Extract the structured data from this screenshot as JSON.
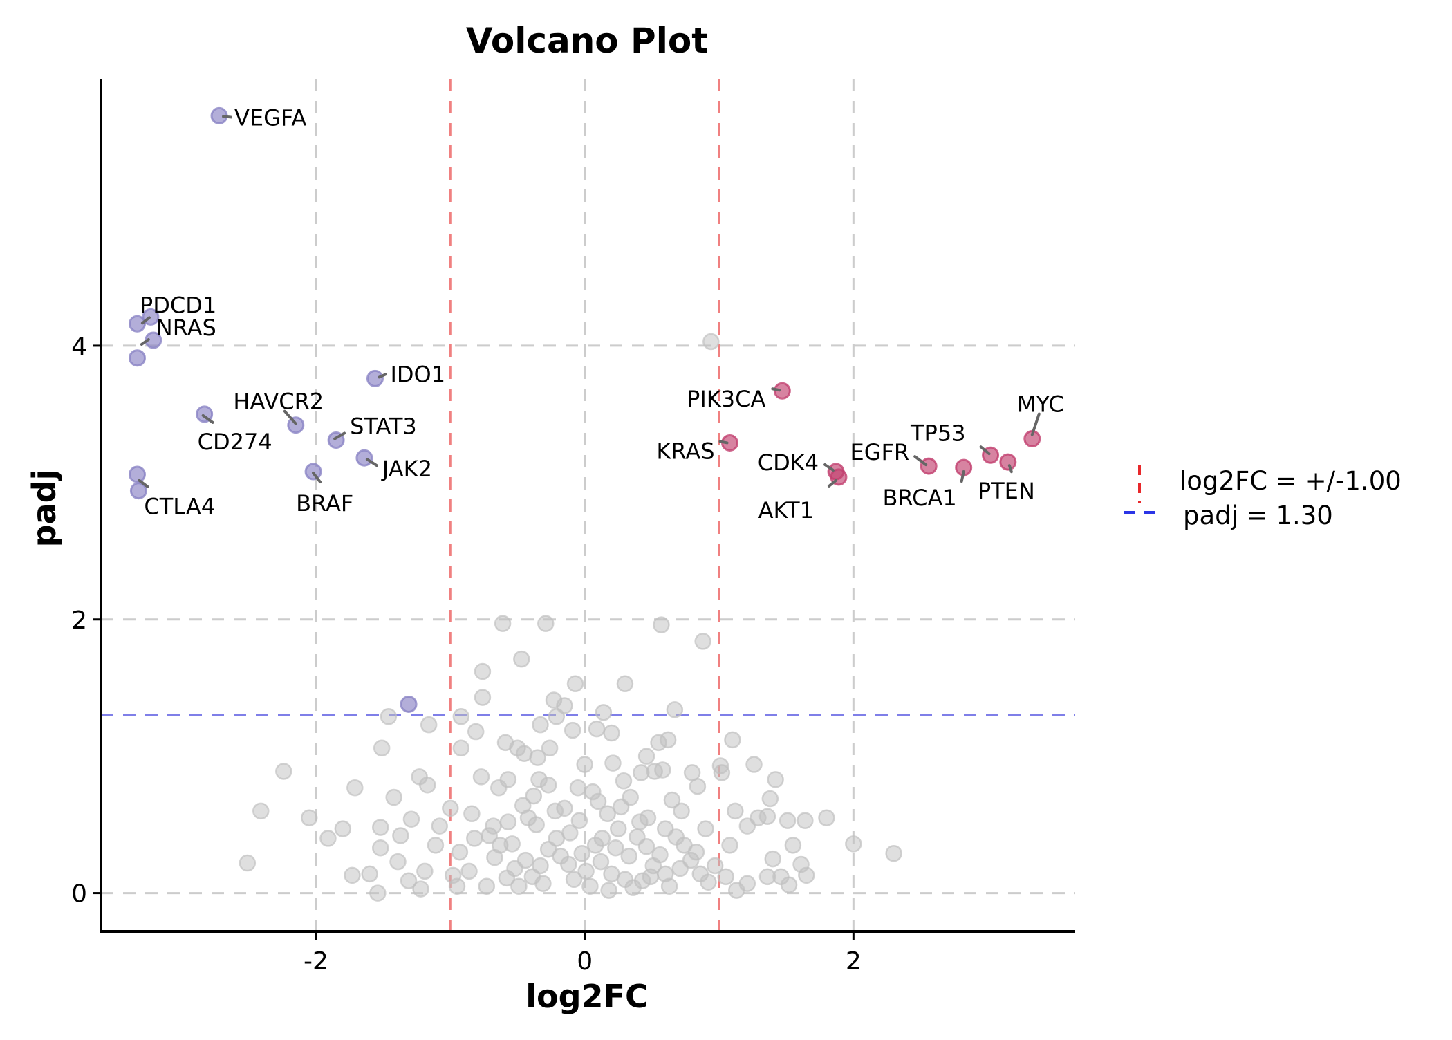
{
  "chart_data": {
    "type": "scatter",
    "title": "Volcano Plot",
    "xlabel": "log2FC",
    "ylabel": "padj",
    "xlim": [
      -3.6,
      3.65
    ],
    "ylim": [
      -0.28,
      5.95
    ],
    "xticks": [
      -2,
      0,
      2
    ],
    "yticks": [
      0,
      2,
      4
    ],
    "xtick_labels": [
      "-2",
      "0",
      "2"
    ],
    "ytick_labels": [
      "0",
      "2",
      "4"
    ],
    "grid": true,
    "thresholds": {
      "log2fc": 1.0,
      "padj": 1.3
    },
    "legend": {
      "placement": "right",
      "entries": [
        {
          "label": "log2FC = +/-1.00",
          "color": "#e8282b",
          "style": "dashed-vertical"
        },
        {
          "label": "padj = 1.30",
          "color": "#2b35e6",
          "style": "dashed-horizontal"
        }
      ]
    },
    "colors": {
      "down": "#8a83c4",
      "up": "#c2406f",
      "ns": "#c0c0c0",
      "log2fc_line": "#f08080",
      "padj_line": "#7f7fe8",
      "grid": "#cccccc"
    },
    "labeled_points": [
      {
        "gene": "VEGFA",
        "x": -2.72,
        "y": 5.68,
        "group": "down"
      },
      {
        "gene": "PDCD1",
        "x": -3.23,
        "y": 4.21,
        "group": "down"
      },
      {
        "gene": "",
        "x": -3.33,
        "y": 4.16,
        "group": "down"
      },
      {
        "gene": "NRAS",
        "x": -3.21,
        "y": 4.04,
        "group": "down"
      },
      {
        "gene": "",
        "x": -3.33,
        "y": 3.91,
        "group": "down"
      },
      {
        "gene": "IDO1",
        "x": -1.56,
        "y": 3.76,
        "group": "down"
      },
      {
        "gene": "HAVCR2",
        "x": -2.15,
        "y": 3.42,
        "group": "down"
      },
      {
        "gene": "CD274",
        "x": -2.83,
        "y": 3.5,
        "group": "down"
      },
      {
        "gene": "STAT3",
        "x": -1.85,
        "y": 3.31,
        "group": "down"
      },
      {
        "gene": "JAK2",
        "x": -1.64,
        "y": 3.18,
        "group": "down"
      },
      {
        "gene": "BRAF",
        "x": -2.02,
        "y": 3.08,
        "group": "down"
      },
      {
        "gene": "",
        "x": -3.33,
        "y": 3.06,
        "group": "down"
      },
      {
        "gene": "CTLA4",
        "x": -3.32,
        "y": 2.94,
        "group": "down"
      },
      {
        "gene": "",
        "x": -1.31,
        "y": 1.38,
        "group": "down"
      },
      {
        "gene": "PIK3CA",
        "x": 1.47,
        "y": 3.67,
        "group": "up"
      },
      {
        "gene": "KRAS",
        "x": 1.08,
        "y": 3.29,
        "group": "up"
      },
      {
        "gene": "CDK4",
        "x": 1.87,
        "y": 3.08,
        "group": "up"
      },
      {
        "gene": "AKT1",
        "x": 1.89,
        "y": 3.04,
        "group": "up"
      },
      {
        "gene": "EGFR",
        "x": 2.56,
        "y": 3.12,
        "group": "up"
      },
      {
        "gene": "BRCA1",
        "x": 2.82,
        "y": 3.11,
        "group": "up"
      },
      {
        "gene": "TP53",
        "x": 3.02,
        "y": 3.2,
        "group": "up"
      },
      {
        "gene": "PTEN",
        "x": 3.15,
        "y": 3.15,
        "group": "up"
      },
      {
        "gene": "MYC",
        "x": 3.33,
        "y": 3.32,
        "group": "up"
      }
    ],
    "ns_points": [
      [
        0.94,
        4.03
      ],
      [
        -0.61,
        1.97
      ],
      [
        -0.29,
        1.97
      ],
      [
        0.57,
        1.96
      ],
      [
        0.88,
        1.84
      ],
      [
        -0.47,
        1.71
      ],
      [
        -0.76,
        1.62
      ],
      [
        -0.07,
        1.53
      ],
      [
        0.3,
        1.53
      ],
      [
        -0.76,
        1.43
      ],
      [
        -0.23,
        1.41
      ],
      [
        -0.15,
        1.37
      ],
      [
        0.14,
        1.32
      ],
      [
        0.67,
        1.34
      ],
      [
        -1.46,
        1.29
      ],
      [
        -0.92,
        1.29
      ],
      [
        -0.33,
        1.23
      ],
      [
        -0.21,
        1.29
      ],
      [
        0.09,
        1.2
      ],
      [
        -1.16,
        1.23
      ],
      [
        -0.81,
        1.18
      ],
      [
        -0.59,
        1.1
      ],
      [
        -0.26,
        1.06
      ],
      [
        -0.09,
        1.19
      ],
      [
        0.2,
        1.17
      ],
      [
        0.55,
        1.1
      ],
      [
        0.62,
        1.12
      ],
      [
        1.1,
        1.12
      ],
      [
        -1.51,
        1.06
      ],
      [
        -0.92,
        1.06
      ],
      [
        -0.5,
        1.06
      ],
      [
        -0.45,
        1.02
      ],
      [
        -0.35,
        0.99
      ],
      [
        0.46,
        1.0
      ],
      [
        -2.24,
        0.89
      ],
      [
        -0.77,
        0.85
      ],
      [
        -0.34,
        0.83
      ],
      [
        0.0,
        0.94
      ],
      [
        0.21,
        0.95
      ],
      [
        0.42,
        0.88
      ],
      [
        0.52,
        0.89
      ],
      [
        1.01,
        0.93
      ],
      [
        1.26,
        0.94
      ],
      [
        -1.23,
        0.85
      ],
      [
        -1.17,
        0.79
      ],
      [
        -0.57,
        0.83
      ],
      [
        -0.27,
        0.79
      ],
      [
        -0.05,
        0.77
      ],
      [
        0.29,
        0.82
      ],
      [
        0.58,
        0.9
      ],
      [
        0.8,
        0.88
      ],
      [
        1.42,
        0.83
      ],
      [
        -1.71,
        0.77
      ],
      [
        -1.42,
        0.7
      ],
      [
        -0.64,
        0.77
      ],
      [
        -0.38,
        0.71
      ],
      [
        0.1,
        0.67
      ],
      [
        0.34,
        0.7
      ],
      [
        0.65,
        0.68
      ],
      [
        0.84,
        0.78
      ],
      [
        1.02,
        0.88
      ],
      [
        1.38,
        0.69
      ],
      [
        -2.41,
        0.6
      ],
      [
        -2.05,
        0.55
      ],
      [
        -1.8,
        0.47
      ],
      [
        -1.29,
        0.54
      ],
      [
        -0.84,
        0.58
      ],
      [
        -0.46,
        0.64
      ],
      [
        -0.22,
        0.6
      ],
      [
        0.17,
        0.58
      ],
      [
        0.47,
        0.55
      ],
      [
        0.72,
        0.6
      ],
      [
        1.12,
        0.6
      ],
      [
        1.29,
        0.55
      ],
      [
        1.51,
        0.53
      ],
      [
        1.64,
        0.53
      ],
      [
        1.8,
        0.55
      ],
      [
        -1.91,
        0.4
      ],
      [
        -1.52,
        0.48
      ],
      [
        -1.08,
        0.49
      ],
      [
        -0.68,
        0.49
      ],
      [
        -0.36,
        0.5
      ],
      [
        -0.04,
        0.53
      ],
      [
        0.25,
        0.47
      ],
      [
        0.6,
        0.47
      ],
      [
        0.9,
        0.47
      ],
      [
        1.21,
        0.49
      ],
      [
        1.36,
        0.56
      ],
      [
        1.55,
        0.35
      ],
      [
        -2.51,
        0.22
      ],
      [
        -1.52,
        0.33
      ],
      [
        -1.39,
        0.23
      ],
      [
        -1.11,
        0.35
      ],
      [
        -0.82,
        0.4
      ],
      [
        -0.54,
        0.36
      ],
      [
        -0.21,
        0.4
      ],
      [
        0.08,
        0.35
      ],
      [
        0.39,
        0.41
      ],
      [
        0.74,
        0.35
      ],
      [
        1.08,
        0.35
      ],
      [
        1.4,
        0.25
      ],
      [
        1.61,
        0.21
      ],
      [
        2.0,
        0.36
      ],
      [
        2.3,
        0.29
      ],
      [
        -1.73,
        0.13
      ],
      [
        -1.6,
        0.14
      ],
      [
        -1.54,
        0.0
      ],
      [
        -1.31,
        0.09
      ],
      [
        -1.19,
        0.16
      ],
      [
        -0.98,
        0.13
      ],
      [
        -0.73,
        0.05
      ],
      [
        -0.52,
        0.18
      ],
      [
        -0.31,
        0.07
      ],
      [
        -0.12,
        0.21
      ],
      [
        0.04,
        0.05
      ],
      [
        0.2,
        0.14
      ],
      [
        0.43,
        0.09
      ],
      [
        0.63,
        0.05
      ],
      [
        0.86,
        0.14
      ],
      [
        1.05,
        0.12
      ],
      [
        1.21,
        0.07
      ],
      [
        1.36,
        0.12
      ],
      [
        1.52,
        0.06
      ],
      [
        1.65,
        0.13
      ],
      [
        -0.93,
        0.3
      ],
      [
        -0.67,
        0.26
      ],
      [
        -0.44,
        0.24
      ],
      [
        -0.18,
        0.27
      ],
      [
        0.12,
        0.23
      ],
      [
        0.33,
        0.27
      ],
      [
        0.56,
        0.28
      ],
      [
        0.79,
        0.24
      ],
      [
        0.97,
        0.2
      ],
      [
        -1.0,
        0.62
      ],
      [
        -0.57,
        0.52
      ],
      [
        -0.11,
        0.44
      ],
      [
        0.23,
        0.33
      ],
      [
        0.51,
        0.2
      ],
      [
        0.68,
        0.41
      ],
      [
        -0.86,
        0.16
      ],
      [
        -0.39,
        0.12
      ],
      [
        0.01,
        0.16
      ],
      [
        0.3,
        0.1
      ],
      [
        0.6,
        0.14
      ],
      [
        -0.63,
        0.35
      ],
      [
        -0.27,
        0.32
      ],
      [
        0.13,
        0.4
      ],
      [
        0.46,
        0.34
      ],
      [
        0.83,
        0.3
      ],
      [
        -0.49,
        0.05
      ],
      [
        -0.08,
        0.1
      ],
      [
        0.36,
        0.04
      ],
      [
        -0.95,
        0.05
      ],
      [
        1.13,
        0.02
      ],
      [
        -1.22,
        0.03
      ],
      [
        -0.15,
        0.62
      ],
      [
        0.27,
        0.63
      ],
      [
        -0.42,
        0.55
      ],
      [
        0.06,
        0.74
      ],
      [
        0.41,
        0.52
      ],
      [
        -0.71,
        0.42
      ],
      [
        0.71,
        0.18
      ],
      [
        -0.02,
        0.29
      ],
      [
        0.18,
        0.02
      ],
      [
        -0.58,
        0.11
      ],
      [
        0.92,
        0.08
      ],
      [
        -1.37,
        0.42
      ],
      [
        1.46,
        0.12
      ],
      [
        -0.33,
        0.2
      ],
      [
        0.49,
        0.12
      ]
    ]
  }
}
